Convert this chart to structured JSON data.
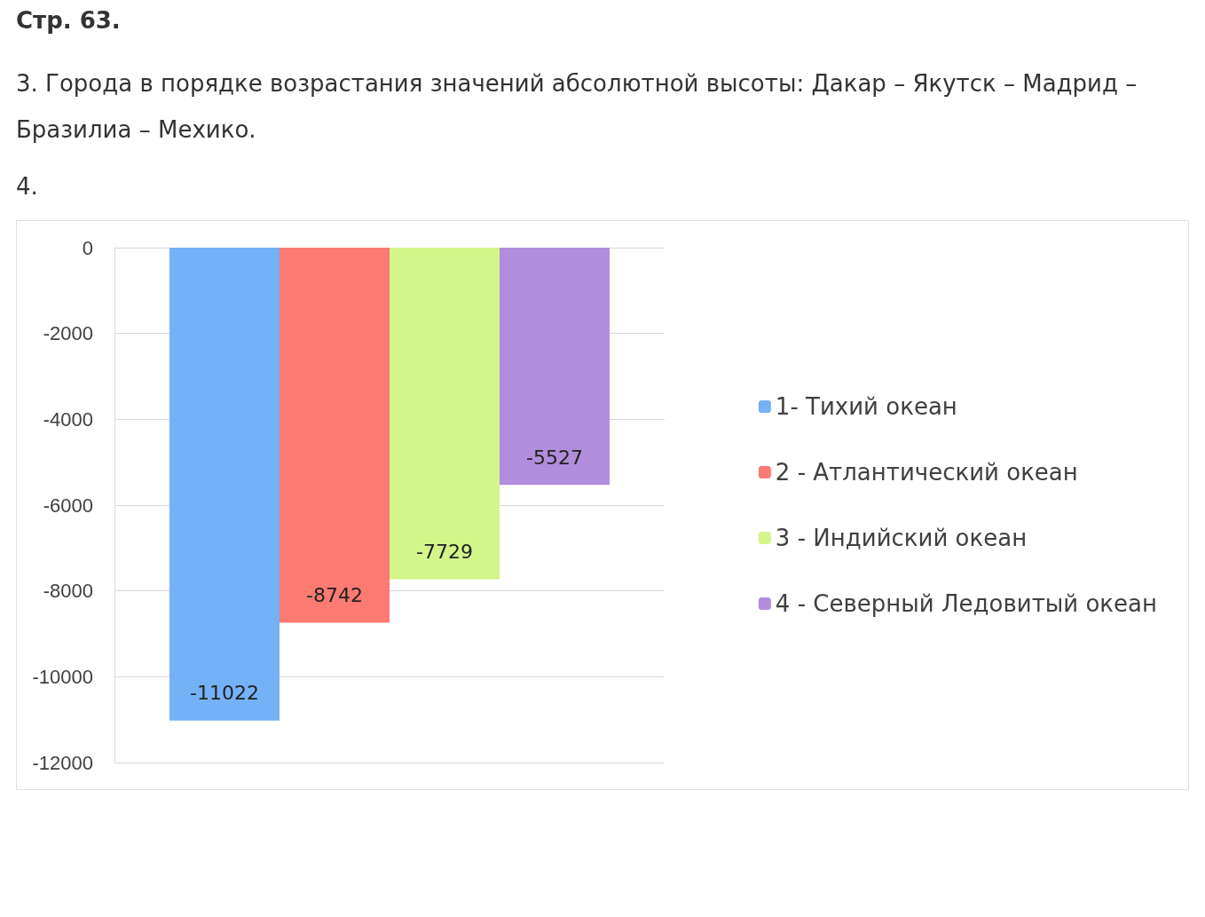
{
  "chart_data": {
    "type": "bar",
    "title": "Стр. 63.",
    "annotations": [
      "3. Города в порядке возрастания значений абсолютной высоты: Дакар – Якутск – Мадрид – Бразилиа – Мехико.",
      "4."
    ],
    "categories": [
      null
    ],
    "series": [
      {
        "name": "1- Тихий океан",
        "color": "#75b1f7",
        "values": [
          -11022
        ]
      },
      {
        "name": "2 - Атлантический океан",
        "color": "#fb7a72",
        "values": [
          -8742
        ]
      },
      {
        "name": "3 - Индийский океан",
        "color": "#d3f589",
        "values": [
          -7729
        ]
      },
      {
        "name": "4 - Северный Ледовитый океан",
        "color": "#b08edb",
        "values": [
          -5527
        ]
      }
    ],
    "ylim": [
      -12000,
      0
    ],
    "yticks": [
      -12000,
      -10000,
      -8000,
      -6000,
      -4000,
      -2000,
      0
    ],
    "grid": "y",
    "legend": "right",
    "data_labels": true,
    "tick_labels": "y"
  }
}
